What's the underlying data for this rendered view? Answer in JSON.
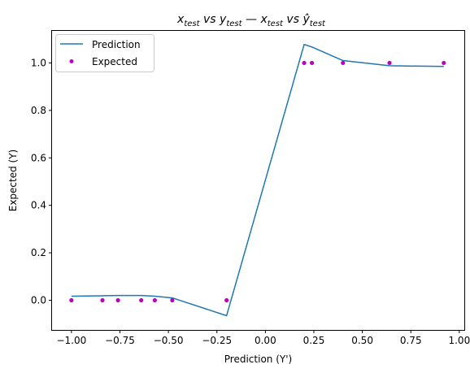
{
  "chart_data": {
    "type": "line",
    "title": {
      "part1_base": "x",
      "part1_sub": "test",
      "part1_mid": " vs ",
      "part2_base": "y",
      "part2_sub": "test",
      "sep": "  —  ",
      "part3_base": "x",
      "part3_sub": "test",
      "part3_mid": " vs ",
      "part4_base": "ŷ",
      "part4_sub": "test"
    },
    "xlabel": "Prediction (Y')",
    "ylabel": "Expected (Y)",
    "xlim": [
      -1.1,
      1.03
    ],
    "ylim": [
      -0.125,
      1.135
    ],
    "xticks": [
      -1.0,
      -0.75,
      -0.5,
      -0.25,
      0.0,
      0.25,
      0.5,
      0.75,
      1.0
    ],
    "xtick_labels": [
      "−1.00",
      "−0.75",
      "−0.50",
      "−0.25",
      "0.00",
      "0.25",
      "0.50",
      "0.75",
      "1.00"
    ],
    "yticks": [
      0.0,
      0.2,
      0.4,
      0.6,
      0.8,
      1.0
    ],
    "ytick_labels": [
      "0.0",
      "0.2",
      "0.4",
      "0.6",
      "0.8",
      "1.0"
    ],
    "grid": false,
    "legend_position": "top-left",
    "series": [
      {
        "name": "Prediction",
        "style": "line",
        "color": "#1f77b4",
        "x": [
          -1.0,
          -0.84,
          -0.76,
          -0.64,
          -0.57,
          -0.48,
          -0.2,
          0.2,
          0.24,
          0.4,
          0.64,
          0.92
        ],
        "y": [
          0.017,
          0.019,
          0.02,
          0.02,
          0.017,
          0.01,
          -0.065,
          1.078,
          1.067,
          1.01,
          0.988,
          0.985
        ]
      },
      {
        "name": "Expected",
        "style": "marker",
        "color": "#bf00bf",
        "x": [
          -1.0,
          -0.84,
          -0.76,
          -0.64,
          -0.57,
          -0.48,
          -0.2,
          0.2,
          0.24,
          0.4,
          0.64,
          0.92
        ],
        "y": [
          0,
          0,
          0,
          0,
          0,
          0,
          0,
          1,
          1,
          1,
          1,
          1
        ]
      }
    ]
  }
}
